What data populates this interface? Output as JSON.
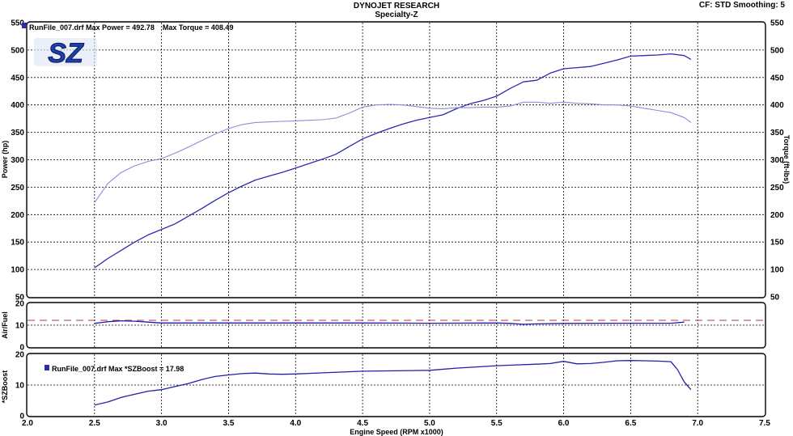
{
  "header": {
    "title": "DYNOJET RESEARCH",
    "subtitle": "Specialty-Z",
    "right_info": "CF: STD  Smoothing: 5"
  },
  "logo": {
    "text": "SZ",
    "color": "#1f3fa8"
  },
  "colors": {
    "power": "#2b2bb0",
    "torque": "#8c8cd8",
    "afr": "#1a1ab0",
    "afr_target": "#c03030",
    "boost": "#2020a8",
    "grid": "#000000"
  },
  "chart_data": [
    {
      "type": "line",
      "panel": "power_torque",
      "legend": "RunFile_007.drf Max Power = 492.78    Max Torque = 408.49",
      "ylabel_left": "Power (hp)",
      "ylabel_right": "Torque (ft-lbs)",
      "ylim": [
        50,
        550
      ],
      "yticks": [
        50,
        100,
        150,
        200,
        250,
        300,
        350,
        400,
        450,
        500,
        550
      ],
      "xlim": [
        2.0,
        7.5
      ],
      "grid": true,
      "series": [
        {
          "key": "power",
          "x": [
            2.5,
            2.6,
            2.7,
            2.8,
            2.9,
            3.0,
            3.1,
            3.2,
            3.3,
            3.4,
            3.5,
            3.6,
            3.7,
            3.8,
            3.9,
            4.0,
            4.1,
            4.2,
            4.3,
            4.4,
            4.5,
            4.6,
            4.7,
            4.8,
            4.9,
            5.0,
            5.1,
            5.2,
            5.3,
            5.4,
            5.5,
            5.6,
            5.7,
            5.8,
            5.9,
            6.0,
            6.1,
            6.2,
            6.3,
            6.4,
            6.5,
            6.6,
            6.7,
            6.8,
            6.9,
            6.95
          ],
          "values": [
            103,
            120,
            135,
            150,
            163,
            173,
            183,
            197,
            211,
            226,
            240,
            252,
            263,
            270,
            277,
            285,
            293,
            301,
            310,
            324,
            338,
            348,
            357,
            365,
            372,
            377,
            382,
            393,
            402,
            408,
            416,
            430,
            442,
            445,
            458,
            466,
            468,
            470,
            476,
            482,
            489,
            490,
            491,
            493,
            490,
            483
          ]
        },
        {
          "key": "torque",
          "x": [
            2.5,
            2.6,
            2.7,
            2.8,
            2.9,
            3.0,
            3.1,
            3.2,
            3.3,
            3.4,
            3.5,
            3.6,
            3.7,
            3.8,
            3.9,
            4.0,
            4.1,
            4.2,
            4.3,
            4.4,
            4.5,
            4.6,
            4.7,
            4.8,
            4.9,
            5.0,
            5.1,
            5.2,
            5.3,
            5.4,
            5.5,
            5.6,
            5.7,
            5.8,
            5.9,
            6.0,
            6.1,
            6.2,
            6.3,
            6.4,
            6.5,
            6.6,
            6.7,
            6.8,
            6.9,
            6.95
          ],
          "values": [
            222,
            257,
            277,
            289,
            297,
            302,
            312,
            323,
            335,
            347,
            357,
            364,
            368,
            369,
            370,
            371,
            372,
            373,
            376,
            385,
            396,
            400,
            401,
            400,
            397,
            394,
            393,
            395,
            395,
            396,
            396,
            398,
            405,
            405,
            403,
            405,
            403,
            402,
            400,
            400,
            398,
            394,
            390,
            386,
            377,
            368
          ]
        }
      ]
    },
    {
      "type": "line",
      "panel": "air_fuel",
      "ylabel": "Air/Fuel",
      "ylim": [
        0,
        20
      ],
      "yticks": [
        0,
        10,
        20
      ],
      "xlim": [
        2.0,
        7.5
      ],
      "target": 12.2,
      "series": [
        {
          "key": "afr",
          "x": [
            2.5,
            2.6,
            2.7,
            2.8,
            2.9,
            3.0,
            3.5,
            4.0,
            4.5,
            5.0,
            5.5,
            5.6,
            5.7,
            5.8,
            6.0,
            6.5,
            6.8,
            6.9
          ],
          "values": [
            10.8,
            11.6,
            12.0,
            11.8,
            11.4,
            11.0,
            11.0,
            11.0,
            11.0,
            10.9,
            11.0,
            10.8,
            10.4,
            10.6,
            10.8,
            10.9,
            10.9,
            11.4
          ]
        }
      ]
    },
    {
      "type": "line",
      "panel": "boost",
      "legend": "RunFile_007.drf Max *SZBoost = 17.98",
      "ylabel": "*SZBoost",
      "ylim": [
        0,
        20
      ],
      "yticks": [
        0,
        10,
        20
      ],
      "xlim": [
        2.0,
        7.5
      ],
      "xticks": [
        "2.0",
        "2.5",
        "3.0",
        "3.5",
        "4.0",
        "4.5",
        "5.0",
        "5.5",
        "6.0",
        "6.5",
        "7.0",
        "7.5"
      ],
      "xlabel": "Engine Speed (RPM x1000)",
      "series": [
        {
          "key": "boost",
          "x": [
            2.5,
            2.6,
            2.7,
            2.8,
            2.9,
            3.0,
            3.1,
            3.2,
            3.3,
            3.4,
            3.5,
            3.6,
            3.7,
            3.8,
            3.9,
            4.0,
            4.5,
            5.0,
            5.2,
            5.5,
            5.8,
            5.9,
            6.0,
            6.1,
            6.2,
            6.3,
            6.4,
            6.5,
            6.6,
            6.7,
            6.8,
            6.85,
            6.9,
            6.95
          ],
          "values": [
            3.5,
            4.5,
            6.0,
            7.0,
            8.0,
            8.5,
            9.5,
            10.5,
            11.8,
            12.8,
            13.3,
            13.7,
            13.9,
            13.6,
            13.5,
            13.6,
            14.5,
            14.8,
            15.5,
            16.3,
            16.8,
            17.0,
            17.7,
            16.9,
            17.0,
            17.4,
            17.9,
            17.98,
            17.9,
            17.8,
            17.6,
            15.0,
            11.0,
            8.5
          ]
        }
      ]
    }
  ]
}
